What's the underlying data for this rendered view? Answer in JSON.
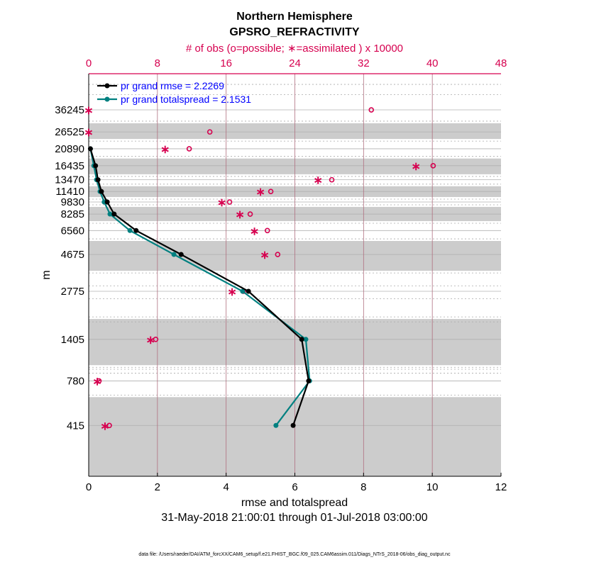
{
  "chart_data": {
    "type": "line",
    "title": [
      "Northern Hemisphere",
      "GPSRO_REFRACTIVITY"
    ],
    "xlabel": "rmse and totalspread",
    "ylabel": "m",
    "top_xlabel": "# of obs (o=possible; ∗=assimilated ) x 10000",
    "date_range": "31-May-2018 21:00:01 through 01-Jul-2018 03:00:00",
    "footer": "data file: /Users/raeder/DAI/ATM_forcXX/CAM6_setup/f.e21.FHIST_BGC.f09_025.CAM6assim.011/Diags_NTrS_2018-06/obs_diag_output.nc",
    "xlim": [
      0,
      12
    ],
    "xticks": [
      0,
      2,
      4,
      6,
      8,
      10,
      12
    ],
    "top_xlim": [
      0,
      48
    ],
    "top_xticks": [
      0,
      8,
      16,
      24,
      32,
      40,
      48
    ],
    "ylim": [
      202,
      60500
    ],
    "yscale": "log",
    "levels": [
      36245,
      26525,
      20890,
      16435,
      13470,
      11410,
      9830,
      8285,
      6560,
      4675,
      2775,
      1405,
      780,
      415
    ],
    "gray_bands": [
      [
        24000,
        30000
      ],
      [
        14560,
        18200
      ],
      [
        10550,
        12290
      ],
      [
        7500,
        9170
      ],
      [
        3710,
        5660
      ],
      [
        975,
        1875
      ],
      [
        202,
        620
      ]
    ],
    "series": [
      {
        "name": "pr grand rmse = 2.2269",
        "color": "#000000",
        "levels": [
          20890,
          16435,
          13470,
          11410,
          9830,
          8285,
          6560,
          4675,
          2775,
          1405,
          780,
          415
        ],
        "values": [
          0.05,
          0.2,
          0.27,
          0.37,
          0.54,
          0.74,
          1.38,
          2.69,
          4.65,
          6.2,
          6.4,
          5.95
        ]
      },
      {
        "name": "pr grand totalspread = 2.1531",
        "color": "#008080",
        "levels": [
          20890,
          16435,
          13470,
          11410,
          9830,
          8285,
          6560,
          4675,
          2775,
          1405,
          780,
          415
        ],
        "values": [
          0.05,
          0.15,
          0.23,
          0.33,
          0.45,
          0.62,
          1.2,
          2.48,
          4.48,
          6.32,
          6.43,
          5.45
        ]
      }
    ],
    "obs_possible": [
      32.9,
      14.1,
      11.7,
      40.1,
      28.3,
      21.2,
      16.4,
      18.8,
      20.8,
      22.0,
      18.0,
      7.8,
      1.2,
      2.4
    ],
    "obs_assimilated": [
      0,
      0,
      8.9,
      38.1,
      26.7,
      20.0,
      15.5,
      17.6,
      19.3,
      20.5,
      16.7,
      7.2,
      1.0,
      1.9
    ],
    "obs_color": "#d6004f"
  }
}
